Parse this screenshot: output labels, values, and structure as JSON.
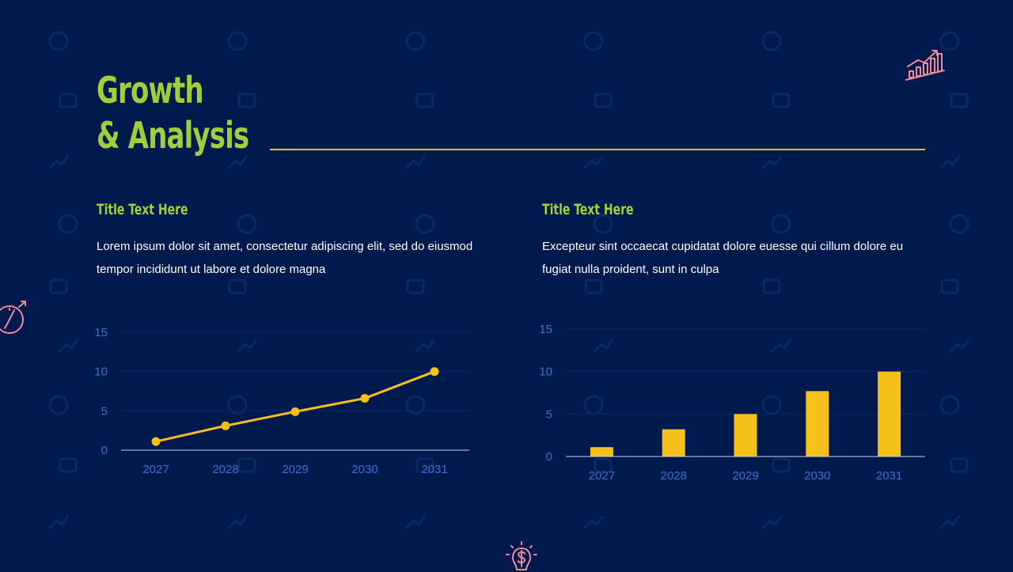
{
  "slide": {
    "title_line1": "Growth",
    "title_line2": "& Analysis",
    "colors": {
      "background": "#001a4d",
      "accent_green": "#a2ce3c",
      "accent_yellow": "#f5c01a",
      "axis_blue": "#3f6fce",
      "icon_pink": "#f08a9a"
    }
  },
  "left": {
    "title": "Title Text Here",
    "body": "Lorem ipsum dolor sit amet, consectetur adipiscing elit, sed do eiusmod tempor incididunt ut labore et dolore magna"
  },
  "right": {
    "title": "Title Text Here",
    "body": "Excepteur sint occaecat cupidatat dolore euesse qui cillum dolore eu fugiat nulla proident, sunt in culpa"
  },
  "icons": [
    "growth-chart-icon",
    "compass-icon",
    "lightbulb-dollar-icon"
  ],
  "chart_data": [
    {
      "type": "line",
      "categories": [
        "2027",
        "2028",
        "2029",
        "2030",
        "2031"
      ],
      "values": [
        1.1,
        3.1,
        4.9,
        6.6,
        10
      ],
      "ylim": [
        0,
        15
      ],
      "yticks": [
        0,
        5,
        10,
        15
      ],
      "color": "#f5c01a",
      "grid": true
    },
    {
      "type": "bar",
      "categories": [
        "2027",
        "2028",
        "2029",
        "2030",
        "2031"
      ],
      "values": [
        1.1,
        3.2,
        5,
        7.7,
        10
      ],
      "ylim": [
        0,
        15
      ],
      "yticks": [
        0,
        5,
        10,
        15
      ],
      "color": "#f5c01a",
      "grid": true
    }
  ]
}
